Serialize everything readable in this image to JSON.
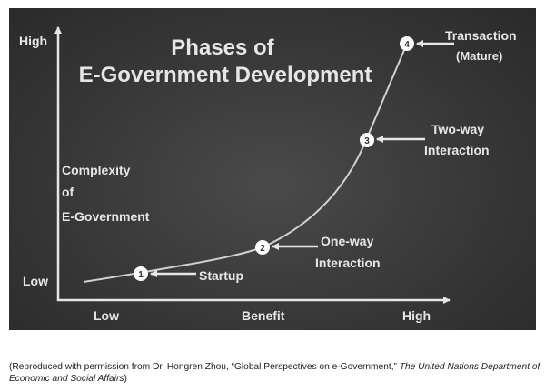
{
  "title_line1": "Phases of",
  "title_line2": "E-Government Development",
  "y_axis": {
    "label": [
      "Complexity",
      "of",
      "E-Government"
    ],
    "high": "High",
    "low": "Low"
  },
  "x_axis": {
    "label": "Benefit",
    "high": "High",
    "low": "Low"
  },
  "phases": [
    {
      "number": "1",
      "label": [
        "Startup"
      ]
    },
    {
      "number": "2",
      "label": [
        "One-way",
        "Interaction"
      ]
    },
    {
      "number": "3",
      "label": [
        "Two-way",
        "Interaction"
      ]
    },
    {
      "number": "4",
      "label": [
        "Transaction",
        "(Mature)"
      ]
    }
  ],
  "caption": {
    "text": "(Reproduced with permission from Dr. Hongren Zhou, “Global Perspectives on e-Government,” ",
    "source": "The United Nations Department of Economic and Social Affairs",
    "end": ")"
  },
  "colors": {
    "background": "#363636",
    "foreground": "#e6e6e6"
  }
}
